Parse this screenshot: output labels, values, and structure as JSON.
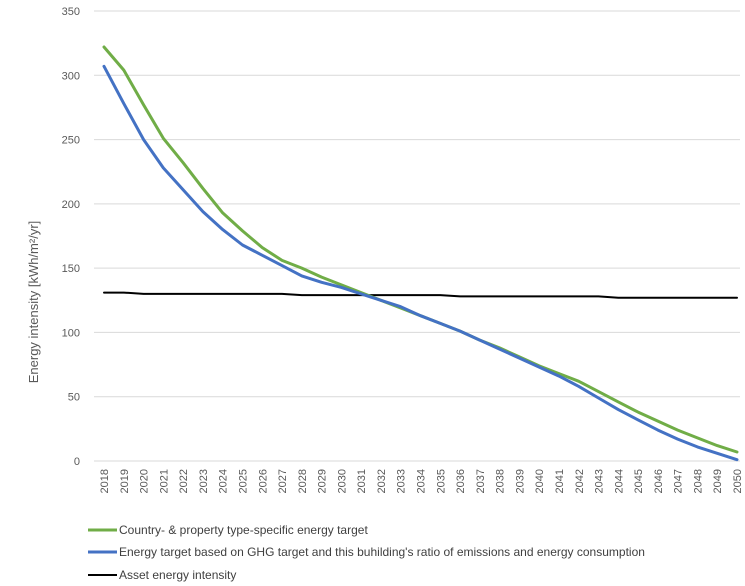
{
  "chart_data": {
    "type": "line",
    "title": "",
    "xlabel": "",
    "ylabel": "Energy intensity [kWh/m²/yr]",
    "ylim": [
      0,
      350
    ],
    "yticks": [
      "0",
      "50",
      "100",
      "150",
      "200",
      "250",
      "300",
      "350"
    ],
    "grid": "horizontal",
    "legend_position": "bottom",
    "categories": [
      "2018",
      "2019",
      "2020",
      "2021",
      "2022",
      "2023",
      "2024",
      "2025",
      "2026",
      "2027",
      "2028",
      "2029",
      "2030",
      "2031",
      "2032",
      "2033",
      "2034",
      "2035",
      "2036",
      "2037",
      "2038",
      "2039",
      "2040",
      "2041",
      "2042",
      "2043",
      "2044",
      "2045",
      "2046",
      "2047",
      "2048",
      "2049",
      "2050"
    ],
    "series": [
      {
        "name": "Country- & property type-specific energy target",
        "color": "#70ad47",
        "values": [
          322,
          304,
          277,
          251,
          232,
          212,
          193,
          179,
          166,
          156,
          150,
          143,
          137,
          131,
          125,
          119,
          113,
          107,
          101,
          94,
          88,
          81,
          74,
          68,
          62,
          54,
          46,
          38,
          31,
          24,
          18,
          12,
          7
        ]
      },
      {
        "name": "Energy target based on GHG target and this buhilding's ratio of emissions and energy consumption",
        "color": "#4472c4",
        "values": [
          307,
          278,
          250,
          228,
          211,
          194,
          180,
          168,
          160,
          152,
          144,
          139,
          135,
          130,
          125,
          120,
          113,
          107,
          101,
          94,
          87,
          80,
          73,
          66,
          58,
          49,
          40,
          32,
          24,
          17,
          11,
          6,
          1
        ]
      },
      {
        "name": "Asset energy intensity",
        "color": "#000000",
        "values": [
          131,
          131,
          130,
          130,
          130,
          130,
          130,
          130,
          130,
          130,
          129,
          129,
          129,
          129,
          129,
          129,
          129,
          129,
          128,
          128,
          128,
          128,
          128,
          128,
          128,
          128,
          127,
          127,
          127,
          127,
          127,
          127,
          127
        ]
      }
    ]
  }
}
